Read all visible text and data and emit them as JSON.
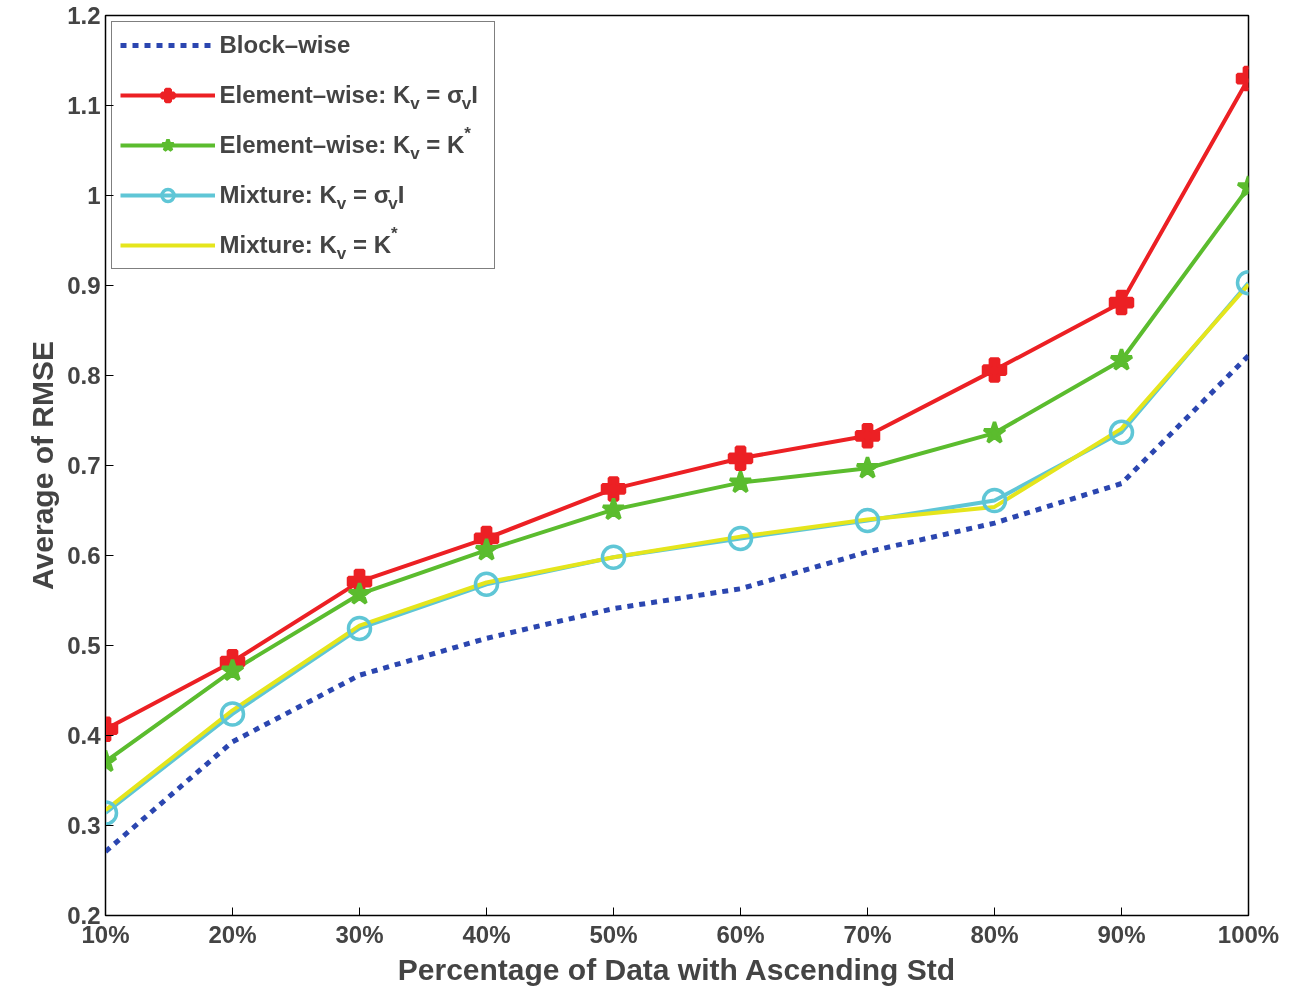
{
  "chart_data": {
    "type": "line",
    "xlabel": "Percentage of Data with Ascending Std",
    "ylabel": "Average of RMSE",
    "categories": [
      "10%",
      "20%",
      "30%",
      "40%",
      "50%",
      "60%",
      "70%",
      "80%",
      "90%",
      "100%"
    ],
    "ylim": [
      0.2,
      1.2
    ],
    "yticks": [
      {
        "value": 0.2,
        "label": "0.2"
      },
      {
        "value": 0.3,
        "label": "0.3"
      },
      {
        "value": 0.4,
        "label": "0.4"
      },
      {
        "value": 0.5,
        "label": "0.5"
      },
      {
        "value": 0.6,
        "label": "0.6"
      },
      {
        "value": 0.7,
        "label": "0.7"
      },
      {
        "value": 0.8,
        "label": "0.8"
      },
      {
        "value": 0.9,
        "label": "0.9"
      },
      {
        "value": 1,
        "label": "1"
      },
      {
        "value": 1.1,
        "label": "1.1"
      },
      {
        "value": 1.2,
        "label": "1.2"
      }
    ],
    "grid": false,
    "legend": "top left",
    "series": [
      {
        "name": "Block–wise",
        "color": "#2b46b0",
        "line_style": "dashed",
        "marker": "none",
        "values": [
          0.271,
          0.393,
          0.467,
          0.508,
          0.541,
          0.563,
          0.604,
          0.636,
          0.68,
          0.822
        ]
      },
      {
        "name": "Element–wise: K$_{v}$ = σ$_{v}$I",
        "color": "#ec2024",
        "line_style": "solid",
        "marker": "cross",
        "values": [
          0.407,
          0.482,
          0.571,
          0.619,
          0.674,
          0.708,
          0.733,
          0.806,
          0.881,
          1.13
        ]
      },
      {
        "name": "Element–wise: K$_{v}$ = K$^{*}$",
        "color": "#5bbc2e",
        "line_style": "solid",
        "marker": "star",
        "values": [
          0.371,
          0.472,
          0.557,
          0.606,
          0.651,
          0.681,
          0.697,
          0.736,
          0.817,
          1.009
        ]
      },
      {
        "name": "Mixture: K$_{v}$ = σ$_{v}$I",
        "color": "#5fc6d6",
        "line_style": "solid",
        "marker": "circle",
        "values": [
          0.314,
          0.424,
          0.519,
          0.568,
          0.598,
          0.619,
          0.639,
          0.661,
          0.737,
          0.903
        ]
      },
      {
        "name": "Mixture: K$_{v}$ = K$^{*}$",
        "color": "#e5e51c",
        "line_style": "solid",
        "marker": "none",
        "values": [
          0.317,
          0.428,
          0.522,
          0.57,
          0.598,
          0.621,
          0.64,
          0.654,
          0.741,
          0.901
        ]
      }
    ]
  }
}
